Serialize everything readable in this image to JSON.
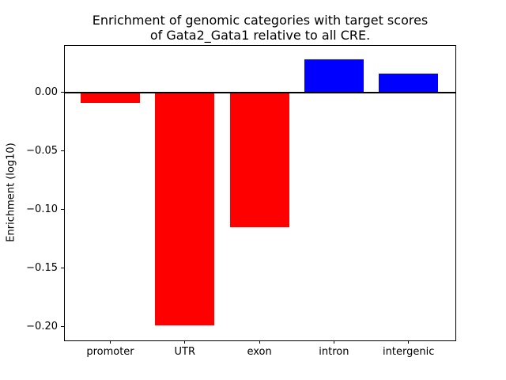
{
  "figure": {
    "title_line1": "Enrichment of genomic categories with target scores",
    "title_line2": "of Gata2_Gata1 relative to all CRE."
  },
  "chart_data": {
    "type": "bar",
    "title": "Enrichment of genomic categories with target scores of Gata2_Gata1 relative to all CRE.",
    "categories": [
      "promoter",
      "UTR",
      "exon",
      "intron",
      "intergenic"
    ],
    "values": [
      -0.009,
      -0.199,
      -0.115,
      0.028,
      0.016
    ],
    "bar_colors": [
      "#ff0000",
      "#ff0000",
      "#ff0000",
      "#0000ff",
      "#0000ff"
    ],
    "negative_color": "#ff0000",
    "positive_color": "#0000ff",
    "xlabel": "",
    "ylabel": "Enrichment (log10)",
    "ylim": [
      -0.2115,
      0.0395
    ],
    "yticks": [
      0.0,
      -0.05,
      -0.1,
      -0.15,
      -0.2
    ],
    "ytick_labels": [
      "0.00",
      "−0.05",
      "−0.10",
      "−0.15",
      "−0.20"
    ],
    "grid": false,
    "legend": null,
    "zero_line": true,
    "background_color": "#ffffff",
    "axis_color": "#000000"
  }
}
